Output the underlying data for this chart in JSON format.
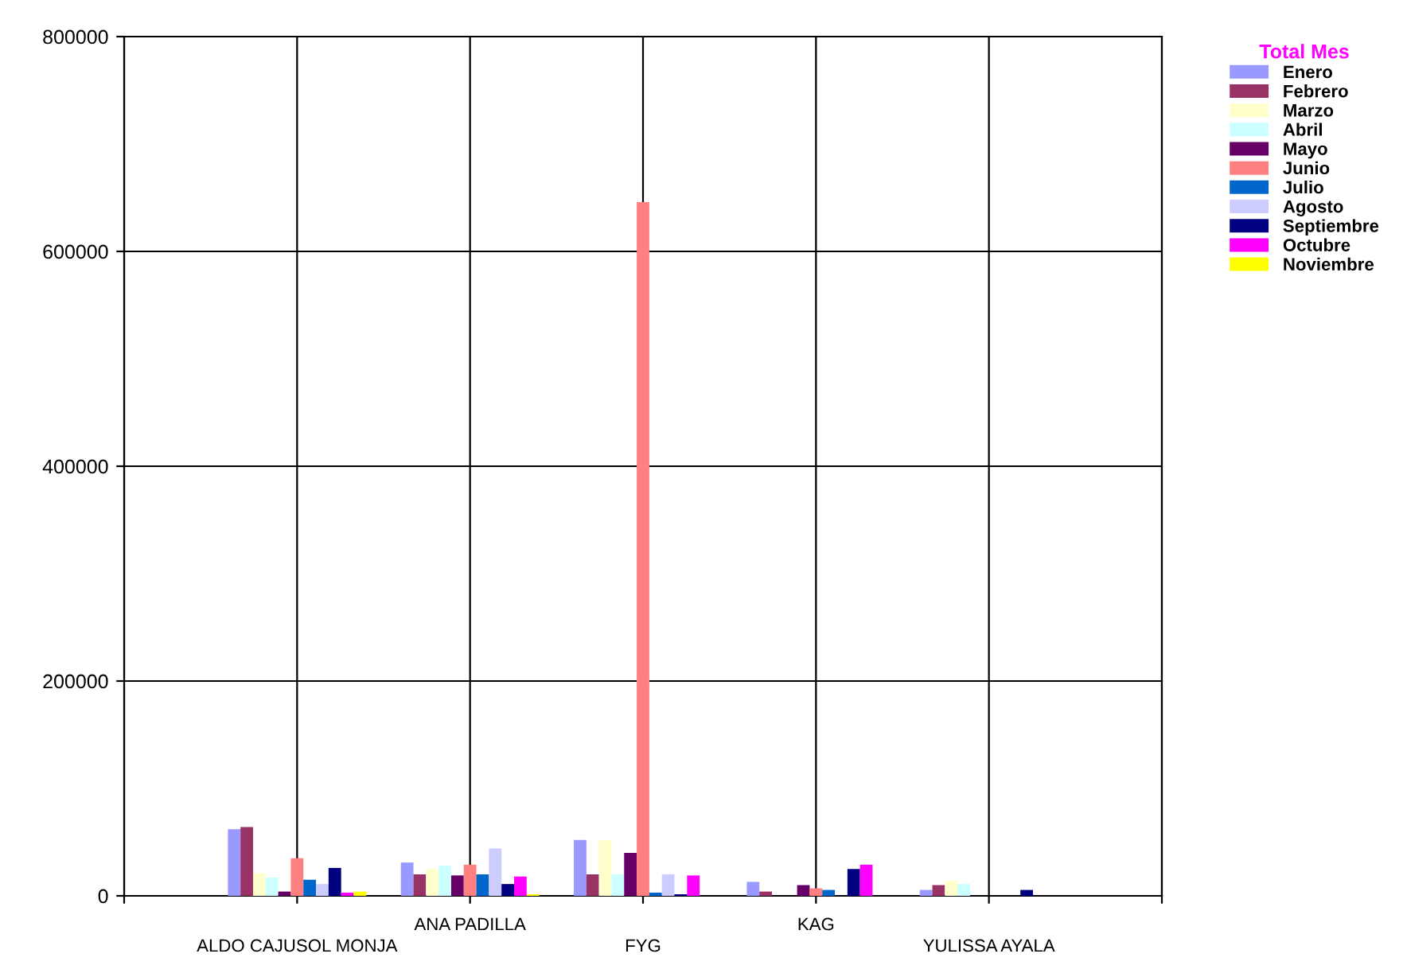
{
  "chart_data": {
    "type": "bar",
    "legend_title": "Total Mes",
    "categories": [
      "ALDO CAJUSOL MONJA",
      "ANA PADILLA",
      "FYG",
      "KAG",
      "YULISSA AYALA"
    ],
    "ylim": [
      0,
      800000
    ],
    "yticks": [
      0,
      200000,
      400000,
      600000,
      800000
    ],
    "grid": true,
    "legend": "top right",
    "series": [
      {
        "name": "Enero",
        "color": "#9999ff",
        "values": [
          62000,
          31000,
          52000,
          13000,
          5500
        ]
      },
      {
        "name": "Febrero",
        "color": "#993366",
        "values": [
          64000,
          20000,
          20000,
          4000,
          10000
        ]
      },
      {
        "name": "Marzo",
        "color": "#ffffcc",
        "values": [
          21000,
          25000,
          52000,
          0,
          14000
        ]
      },
      {
        "name": "Abril",
        "color": "#ccffff",
        "values": [
          17000,
          28000,
          20000,
          0,
          11000
        ]
      },
      {
        "name": "Mayo",
        "color": "#660066",
        "values": [
          4000,
          19000,
          40000,
          10000,
          0
        ]
      },
      {
        "name": "Junio",
        "color": "#ff8080",
        "values": [
          35000,
          29000,
          646000,
          7000,
          0
        ]
      },
      {
        "name": "Julio",
        "color": "#0066cc",
        "values": [
          15000,
          20000,
          3000,
          5500,
          0
        ]
      },
      {
        "name": "Agosto",
        "color": "#ccccff",
        "values": [
          11000,
          44000,
          20000,
          0,
          0
        ]
      },
      {
        "name": "Septiembre",
        "color": "#000080",
        "values": [
          26000,
          11000,
          1500,
          25000,
          5500
        ]
      },
      {
        "name": "Octubre",
        "color": "#ff00ff",
        "values": [
          3000,
          18000,
          19000,
          29000,
          0
        ]
      },
      {
        "name": "Noviembre",
        "color": "#ffff00",
        "values": [
          4000,
          1500,
          0,
          0,
          0
        ]
      }
    ]
  }
}
